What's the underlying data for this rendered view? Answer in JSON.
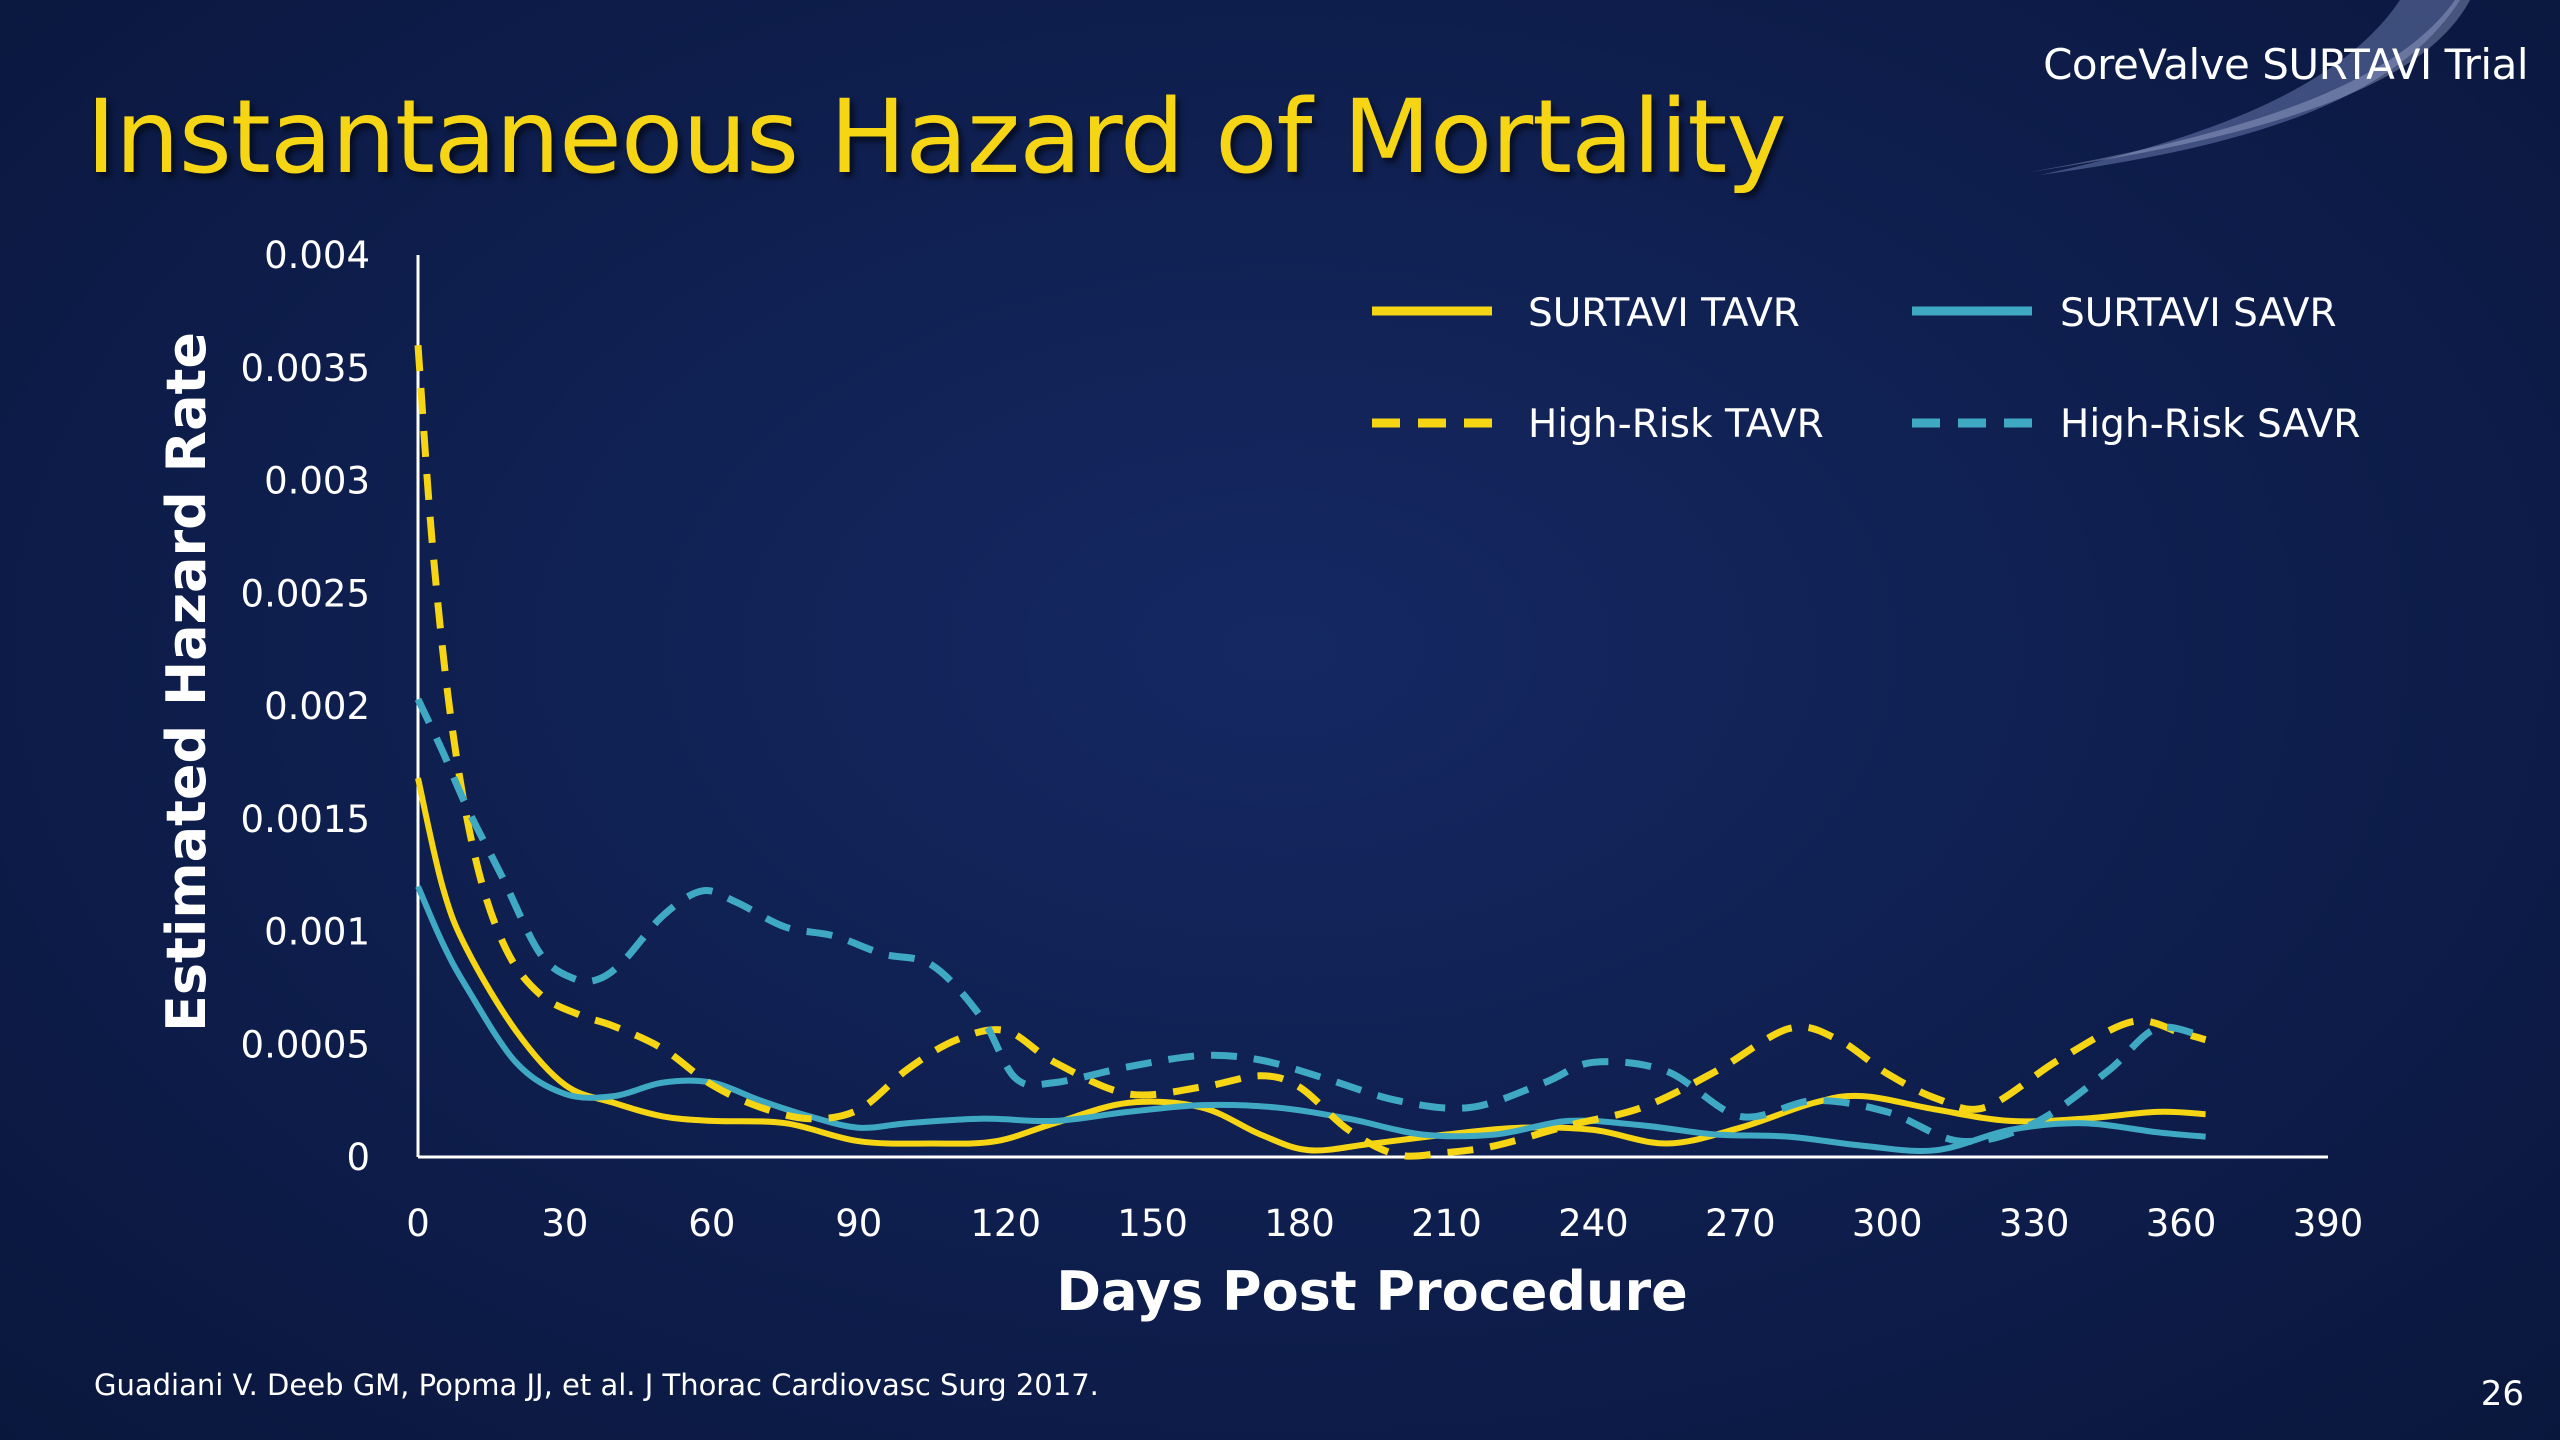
{
  "slide": {
    "title": "Instantaneous Hazard of Mortality",
    "brand": "CoreValve SURTAVI Trial",
    "citation": "Guadiani V. Deeb GM, Popma JJ, et al. J Thorac Cardiovasc Surg 2017.",
    "page_number": "26"
  },
  "colors": {
    "background": "#0e1e4d",
    "title": "#f5d514",
    "tavr": "#f5d514",
    "savr": "#3fa9c4"
  },
  "chart_data": {
    "type": "line",
    "title": "",
    "xlabel": "Days Post Procedure",
    "ylabel": "Estimated Hazard Rate",
    "xlim": [
      0,
      390
    ],
    "ylim": [
      0,
      0.004
    ],
    "x_ticks": [
      "0",
      "30",
      "60",
      "90",
      "120",
      "150",
      "180",
      "210",
      "240",
      "270",
      "300",
      "330",
      "360",
      "390"
    ],
    "y_ticks": [
      "0",
      "0.0005",
      "0.001",
      "0.0015",
      "0.002",
      "0.0025",
      "0.003",
      "0.0035",
      "0.004"
    ],
    "grid": false,
    "legend_position": "top-right",
    "series": [
      {
        "name": "SURTAVI TAVR",
        "color": "#f5d514",
        "style": "solid",
        "x": [
          0,
          5,
          10,
          20,
          30,
          40,
          50,
          60,
          75,
          90,
          105,
          118,
          130,
          145,
          160,
          172,
          182,
          195,
          210,
          225,
          240,
          255,
          270,
          285,
          295,
          310,
          325,
          340,
          355,
          365
        ],
        "y": [
          0.00168,
          0.0012,
          0.00092,
          0.00056,
          0.00032,
          0.00024,
          0.00018,
          0.00016,
          0.00015,
          7e-05,
          6e-05,
          7e-05,
          0.00015,
          0.00024,
          0.00022,
          0.0001,
          3e-05,
          6e-05,
          0.0001,
          0.00013,
          0.00012,
          6e-05,
          0.00013,
          0.00024,
          0.00027,
          0.00021,
          0.00016,
          0.00017,
          0.0002,
          0.00019
        ]
      },
      {
        "name": "SURTAVI SAVR",
        "color": "#3fa9c4",
        "style": "solid",
        "x": [
          0,
          5,
          10,
          20,
          30,
          40,
          50,
          60,
          70,
          80,
          90,
          100,
          115,
          130,
          145,
          160,
          175,
          190,
          205,
          220,
          235,
          250,
          265,
          280,
          295,
          310,
          325,
          340,
          355,
          365
        ],
        "y": [
          0.0012,
          0.00095,
          0.00075,
          0.00042,
          0.00028,
          0.00027,
          0.00033,
          0.00033,
          0.00025,
          0.00018,
          0.00013,
          0.00015,
          0.00017,
          0.00016,
          0.0002,
          0.00023,
          0.00022,
          0.00017,
          0.0001,
          0.0001,
          0.00016,
          0.00014,
          0.0001,
          9e-05,
          5e-05,
          3e-05,
          0.00012,
          0.00015,
          0.00011,
          9e-05
        ]
      },
      {
        "name": "High-Risk TAVR",
        "color": "#f5d514",
        "style": "dashed",
        "x": [
          0,
          3,
          7,
          12,
          18,
          25,
          33,
          40,
          50,
          60,
          70,
          80,
          90,
          100,
          110,
          120,
          130,
          145,
          160,
          172,
          180,
          190,
          200,
          210,
          220,
          235,
          250,
          265,
          280,
          290,
          300,
          310,
          320,
          335,
          350,
          360,
          365
        ],
        "y": [
          0.0036,
          0.0027,
          0.0019,
          0.0013,
          0.00092,
          0.00072,
          0.00063,
          0.00058,
          0.00048,
          0.00032,
          0.00022,
          0.00017,
          0.00021,
          0.00039,
          0.00052,
          0.00056,
          0.00042,
          0.00028,
          0.00031,
          0.00036,
          0.00031,
          0.00012,
          1e-05,
          2e-05,
          5e-05,
          0.00014,
          0.00022,
          0.00038,
          0.00057,
          0.00052,
          0.00037,
          0.00026,
          0.00022,
          0.00043,
          0.0006,
          0.00055,
          0.00052
        ]
      },
      {
        "name": "High-Risk SAVR",
        "color": "#3fa9c4",
        "style": "dashed",
        "x": [
          0,
          5,
          10,
          17,
          25,
          32,
          37,
          42,
          50,
          58,
          65,
          75,
          85,
          95,
          105,
          115,
          122,
          130,
          145,
          160,
          172,
          185,
          200,
          215,
          230,
          240,
          255,
          270,
          285,
          300,
          315,
          330,
          345,
          355,
          365
        ],
        "y": [
          0.00203,
          0.0018,
          0.00155,
          0.00125,
          0.0009,
          0.00079,
          0.00079,
          0.00087,
          0.00107,
          0.00118,
          0.00113,
          0.00102,
          0.00098,
          0.0009,
          0.00085,
          0.00062,
          0.00035,
          0.00033,
          0.0004,
          0.00045,
          0.00043,
          0.00035,
          0.00025,
          0.00022,
          0.00033,
          0.00042,
          0.00038,
          0.00018,
          0.00025,
          0.0002,
          7e-05,
          0.00015,
          0.00038,
          0.00057,
          0.00053
        ]
      }
    ]
  }
}
